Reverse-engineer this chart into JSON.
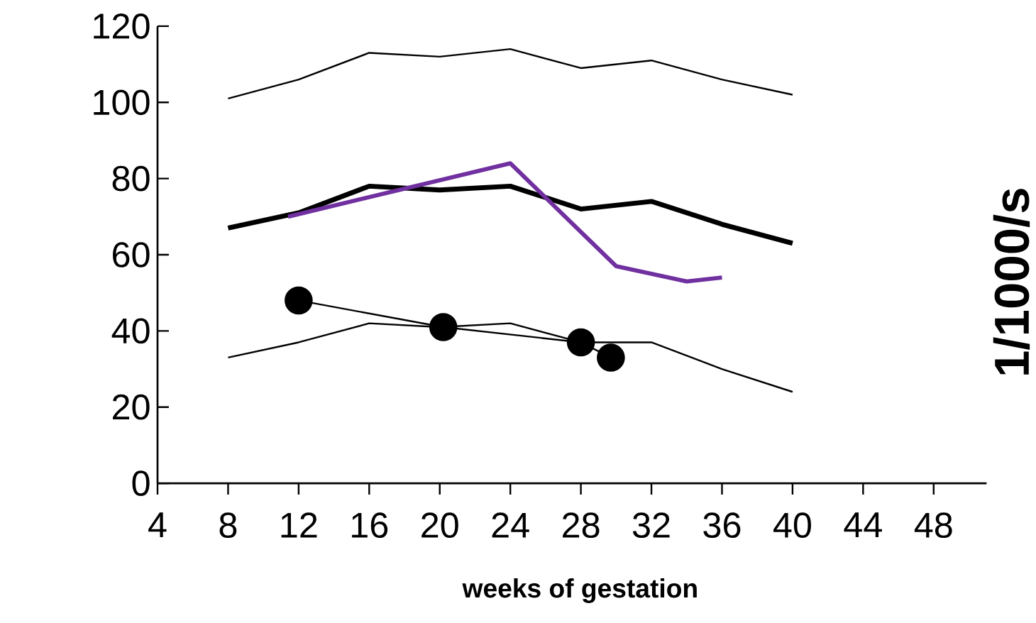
{
  "chart_data": {
    "type": "line",
    "xlabel": "weeks of gestation",
    "ylabel": "1/1000/s",
    "xlim": [
      4,
      51
    ],
    "ylim": [
      0,
      120
    ],
    "xticks": [
      4,
      8,
      12,
      16,
      20,
      24,
      28,
      32,
      36,
      40,
      44,
      48
    ],
    "yticks": [
      0,
      20,
      40,
      60,
      80,
      100,
      120
    ],
    "series": [
      {
        "color": "#000000",
        "x": [
          8,
          12,
          16,
          20,
          24,
          28,
          32,
          36,
          40
        ],
        "values": [
          101,
          106,
          113,
          112,
          114,
          109,
          111,
          106,
          102
        ]
      },
      {
        "color": "#000000",
        "x": [
          8,
          12,
          16,
          20,
          24,
          28,
          32,
          36,
          40
        ],
        "values": [
          67,
          71,
          78,
          77,
          78,
          72,
          74,
          68,
          63
        ]
      },
      {
        "color": "#000000",
        "x": [
          8,
          12,
          16,
          20,
          24,
          28,
          32,
          36,
          40
        ],
        "values": [
          33,
          37,
          42,
          41,
          42,
          37,
          37,
          30,
          24
        ]
      },
      {
        "color": "#7030a0",
        "x": [
          11.4,
          24,
          28,
          30,
          34,
          36
        ],
        "values": [
          70,
          84,
          66,
          57,
          53,
          54
        ]
      },
      {
        "color": "#000000",
        "marker": "circle",
        "x": [
          12,
          20.2,
          28,
          29.7
        ],
        "values": [
          48,
          41,
          37,
          33
        ]
      }
    ]
  }
}
